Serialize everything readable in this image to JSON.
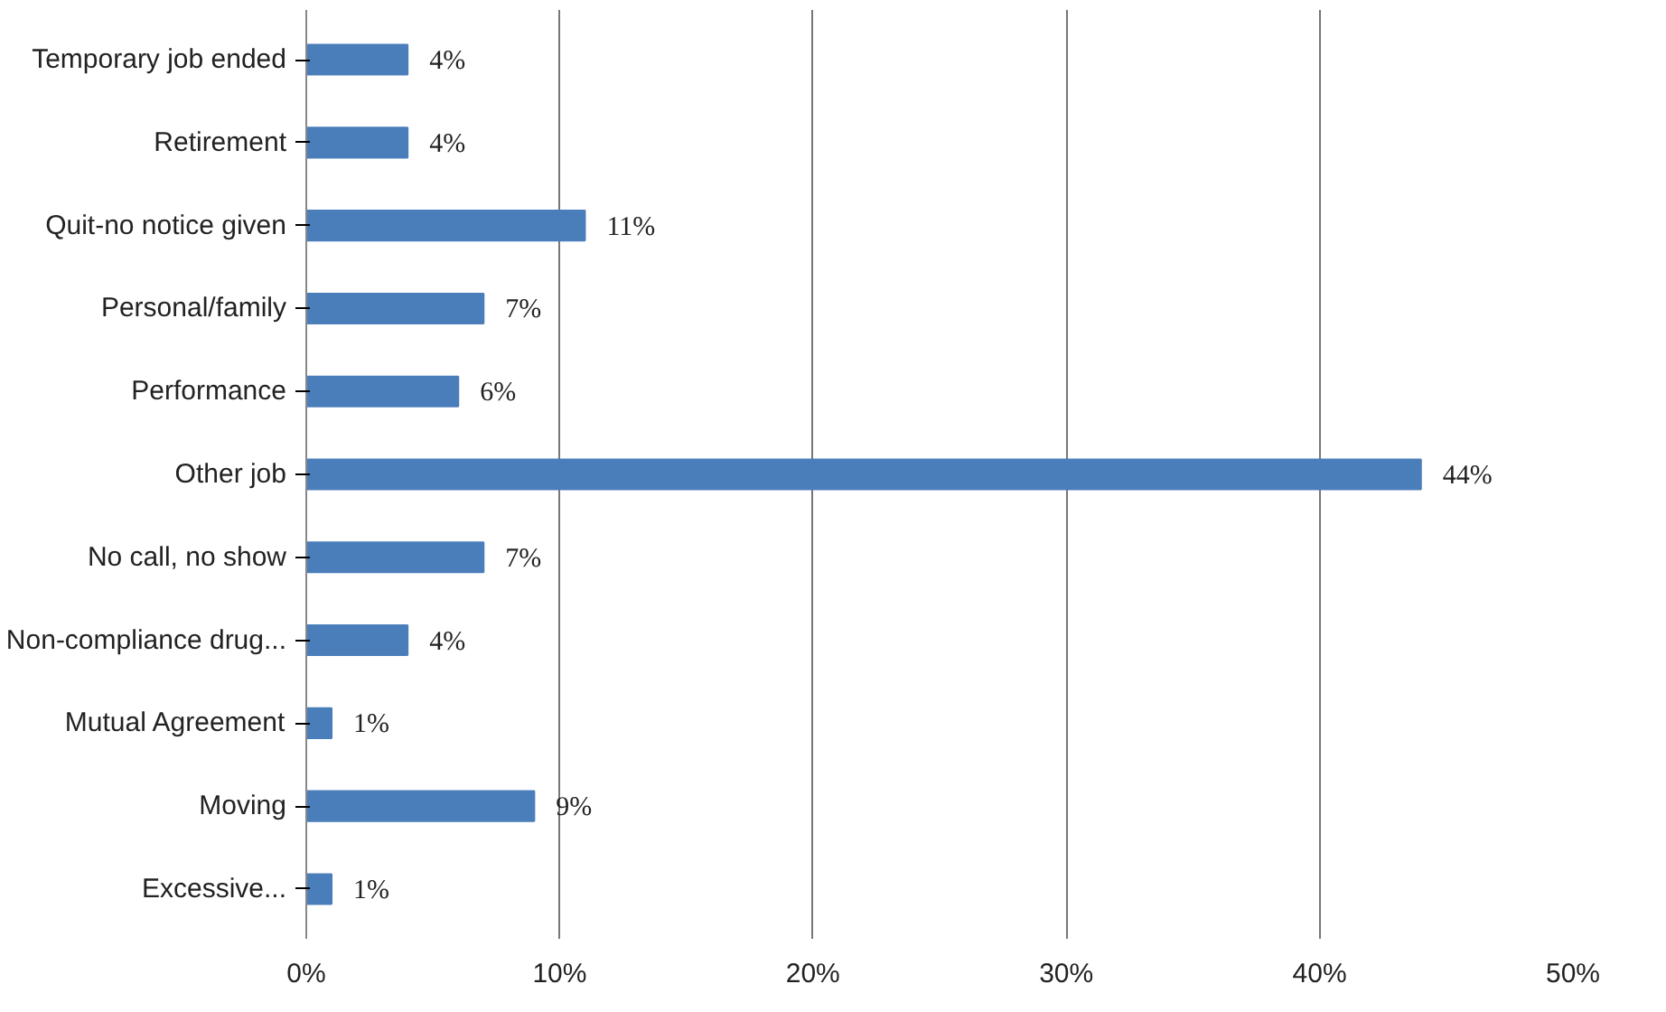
{
  "chart_data": {
    "type": "bar",
    "orientation": "horizontal",
    "categories": [
      "Temporary job ended",
      "Retirement",
      "Quit-no notice given",
      "Personal/family",
      "Performance",
      "Other job",
      "No call, no show",
      "Non-compliance drug...",
      "Mutual Agreement",
      "Moving",
      "Excessive..."
    ],
    "values": [
      4,
      4,
      11,
      7,
      6,
      44,
      7,
      4,
      1,
      9,
      1
    ],
    "value_labels": [
      "4%",
      "4%",
      "11%",
      "7%",
      "6%",
      "44%",
      "7%",
      "4%",
      "1%",
      "9%",
      "1%"
    ],
    "color": "#4a7ebb",
    "xlim": [
      0,
      50
    ],
    "xticks": [
      {
        "value": 0,
        "label": "0%"
      },
      {
        "value": 10,
        "label": "10%"
      },
      {
        "value": 20,
        "label": "20%"
      },
      {
        "value": 30,
        "label": "30%"
      },
      {
        "value": 40,
        "label": "40%"
      },
      {
        "value": 50,
        "label": "50%"
      }
    ],
    "grid": "x"
  }
}
